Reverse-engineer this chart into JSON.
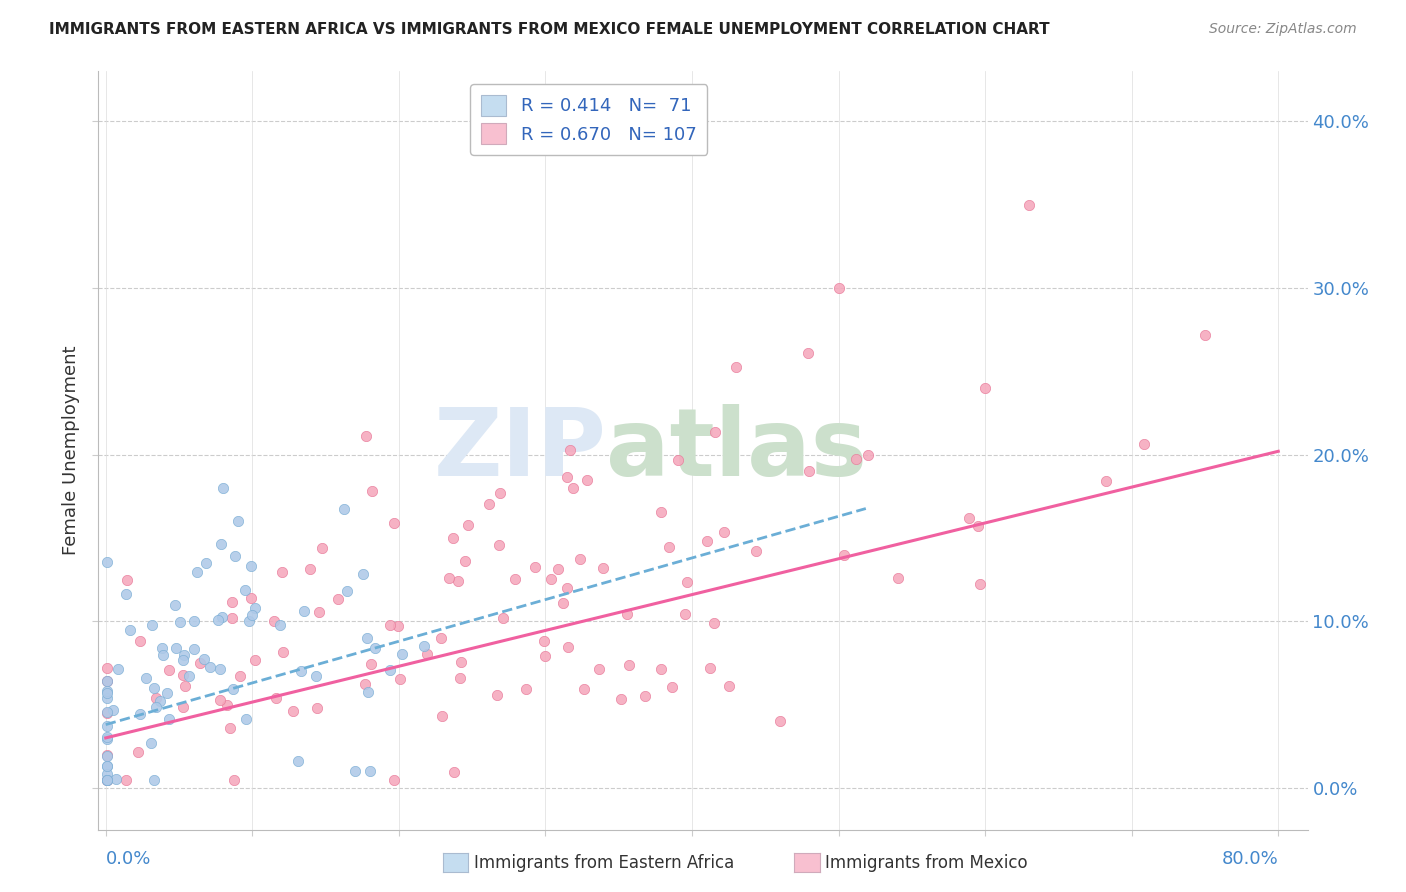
{
  "title": "IMMIGRANTS FROM EASTERN AFRICA VS IMMIGRANTS FROM MEXICO FEMALE UNEMPLOYMENT CORRELATION CHART",
  "source": "Source: ZipAtlas.com",
  "ylabel": "Female Unemployment",
  "ytick_vals": [
    0.0,
    0.1,
    0.2,
    0.3,
    0.4
  ],
  "ytick_labels": [
    "0.0%",
    "10.0%",
    "20.0%",
    "30.0%",
    "40.0%"
  ],
  "xtick_vals": [
    0.0,
    0.1,
    0.2,
    0.3,
    0.4,
    0.5,
    0.6,
    0.7,
    0.8
  ],
  "xlim": [
    -0.005,
    0.82
  ],
  "ylim": [
    -0.025,
    0.43
  ],
  "R_eastern": 0.414,
  "N_eastern": 71,
  "R_mexico": 0.67,
  "N_mexico": 107,
  "color_eastern": "#aec9e8",
  "color_mexico": "#f5a8bc",
  "edge_eastern": "#7aadd4",
  "edge_mexico": "#e87898",
  "line_eastern_color": "#6baed6",
  "line_mexico_color": "#f060a0",
  "legend_box_eastern": "#c5ddf0",
  "legend_box_mexico": "#f8c0d0",
  "title_color": "#222222",
  "source_color": "#888888",
  "axis_label_color": "#4488cc",
  "ylabel_color": "#333333",
  "grid_color": "#cccccc",
  "spine_color": "#bbbbbb",
  "watermark_zip_color": "#dde8f5",
  "watermark_atlas_color": "#cce0cc"
}
